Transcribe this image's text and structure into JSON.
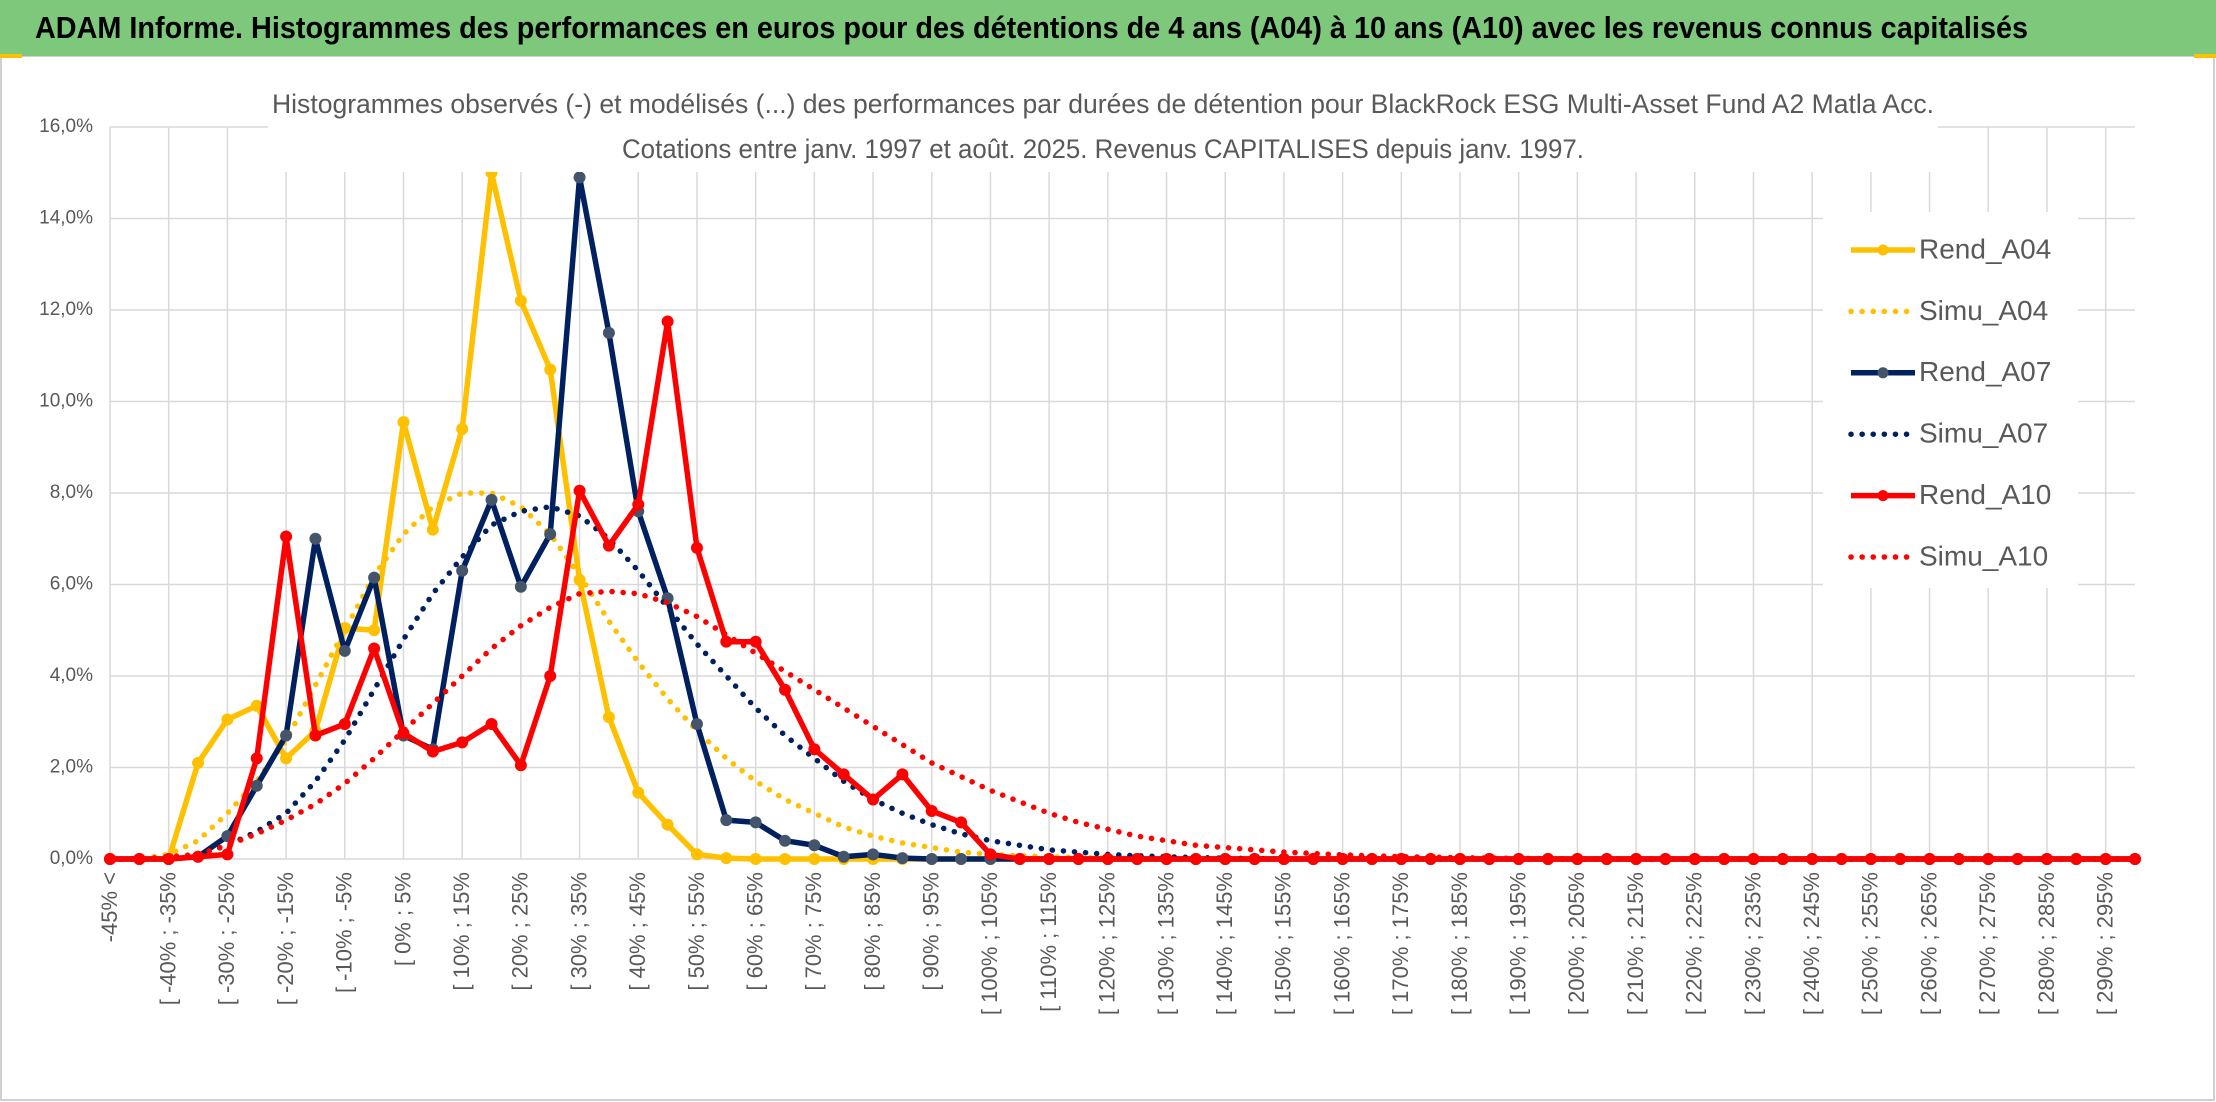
{
  "header": {
    "title": "ADAM Informe. Histogrammes des performances en euros pour des détentions de 4 ans (A04) à 10 ans (A10) avec les revenus connus capitalisés"
  },
  "chart_data": {
    "type": "line",
    "title": "Histogrammes observés (-) et modélisés (...) des performances par durées de détention pour BlackRock ESG Multi-Asset Fund A2 Matla Acc.",
    "subtitle": "Cotations entre janv. 1997 et août. 2025. Revenus CAPITALISES depuis janv. 1997.",
    "categories": [
      "-45% <",
      null,
      "[ -40% ; -35%",
      null,
      "[ -30% ; -25%",
      null,
      "[ -20% ; -15%",
      null,
      "[ -10% ; -5%",
      null,
      "[ 0% ; 5%",
      null,
      "[ 10% ; 15%",
      null,
      "[ 20% ; 25%",
      null,
      "[ 30% ; 35%",
      null,
      "[ 40% ; 45%",
      null,
      "[ 50% ; 55%",
      null,
      "[ 60% ; 65%",
      null,
      "[ 70% ; 75%",
      null,
      "[ 80% ; 85%",
      null,
      "[ 90% ; 95%",
      null,
      "[ 100% ; 105%",
      null,
      "[ 110% ; 115%",
      null,
      "[ 120% ; 125%",
      null,
      "[ 130% ; 135%",
      null,
      "[ 140% ; 145%",
      null,
      "[ 150% ; 155%",
      null,
      "[ 160% ; 165%",
      null,
      "[ 170% ; 175%",
      null,
      "[ 180% ; 185%",
      null,
      "[ 190% ; 195%",
      null,
      "[ 200% ; 205%",
      null,
      "[ 210% ; 215%",
      null,
      "[ 220% ; 225%",
      null,
      "[ 230% ; 235%",
      null,
      "[ 240% ; 245%",
      null,
      "[ 250% ; 255%",
      null,
      "[ 260% ; 265%",
      null,
      "[ 270% ; 275%",
      null,
      "[ 280% ; 285%",
      null,
      "[ 290% ; 295%",
      null
    ],
    "series": [
      {
        "name": "Rend_A04",
        "color": "#ffc000",
        "style": "solid",
        "markers": true,
        "values": [
          0,
          0,
          0,
          2.1,
          3.05,
          3.35,
          2.2,
          2.8,
          5.05,
          5.0,
          9.55,
          7.2,
          9.4,
          15.0,
          12.2,
          10.7,
          6.1,
          3.1,
          1.45,
          0.75,
          0.1,
          0.02,
          0,
          0,
          0,
          0,
          0,
          0,
          0,
          0,
          0,
          0,
          0,
          0,
          0,
          0,
          0,
          0,
          0,
          0,
          0,
          0,
          0,
          0,
          0,
          0,
          0,
          0,
          0,
          0,
          0,
          0,
          0,
          0,
          0,
          0,
          0,
          0,
          0,
          0,
          0,
          0,
          0,
          0,
          0,
          0,
          0,
          0,
          0,
          0
        ]
      },
      {
        "name": "Simu_A04",
        "color": "#ffc000",
        "style": "dotted",
        "markers": false,
        "values": [
          0,
          0,
          0.1,
          0.4,
          1.0,
          1.7,
          2.6,
          3.8,
          5.0,
          6.2,
          7.1,
          7.7,
          8.0,
          8.0,
          7.7,
          7.1,
          6.2,
          5.2,
          4.3,
          3.5,
          2.8,
          2.2,
          1.7,
          1.3,
          1.0,
          0.7,
          0.5,
          0.35,
          0.25,
          0.15,
          0.1,
          0.07,
          0.05,
          0.03,
          0.02,
          0.01,
          0,
          0,
          0,
          0,
          0,
          0,
          0,
          0,
          0,
          0,
          0,
          0,
          0,
          0,
          0,
          0,
          0,
          0,
          0,
          0,
          0,
          0,
          0,
          0,
          0,
          0,
          0,
          0,
          0,
          0,
          0,
          0,
          0,
          0
        ]
      },
      {
        "name": "Rend_A07",
        "color": "#002060",
        "marker_color": "#44546a",
        "style": "solid",
        "markers": true,
        "values": [
          0,
          0,
          0,
          0.05,
          0.5,
          1.6,
          2.7,
          7.0,
          4.55,
          6.15,
          2.7,
          2.4,
          6.3,
          7.85,
          5.95,
          7.1,
          14.9,
          11.5,
          7.6,
          5.7,
          2.95,
          0.85,
          0.8,
          0.4,
          0.3,
          0.05,
          0.1,
          0.02,
          0,
          0,
          0,
          0,
          0,
          0,
          0,
          0,
          0,
          0,
          0,
          0,
          0,
          0,
          0,
          0,
          0,
          0,
          0,
          0,
          0,
          0,
          0,
          0,
          0,
          0,
          0,
          0,
          0,
          0,
          0,
          0,
          0,
          0,
          0,
          0,
          0,
          0,
          0,
          0,
          0,
          0
        ]
      },
      {
        "name": "Simu_A07",
        "color": "#002060",
        "style": "dotted",
        "markers": false,
        "values": [
          0,
          0,
          0,
          0.1,
          0.3,
          0.6,
          1.0,
          1.7,
          2.6,
          3.7,
          4.8,
          5.8,
          6.6,
          7.3,
          7.6,
          7.7,
          7.5,
          7.0,
          6.3,
          5.5,
          4.7,
          4.0,
          3.3,
          2.7,
          2.2,
          1.7,
          1.3,
          1.0,
          0.75,
          0.55,
          0.4,
          0.3,
          0.2,
          0.15,
          0.1,
          0.07,
          0.05,
          0.03,
          0.02,
          0.01,
          0,
          0,
          0,
          0,
          0,
          0,
          0,
          0,
          0,
          0,
          0,
          0,
          0,
          0,
          0,
          0,
          0,
          0,
          0,
          0,
          0,
          0,
          0,
          0,
          0,
          0,
          0,
          0,
          0,
          0
        ]
      },
      {
        "name": "Rend_A10",
        "color": "#ff0000",
        "style": "solid",
        "markers": true,
        "values": [
          0,
          0,
          0,
          0.05,
          0.1,
          2.2,
          7.05,
          2.7,
          2.95,
          4.6,
          2.75,
          2.35,
          2.55,
          2.95,
          2.05,
          4.0,
          8.05,
          6.85,
          7.75,
          11.75,
          6.8,
          4.75,
          4.75,
          3.7,
          2.4,
          1.85,
          1.3,
          1.85,
          1.05,
          0.8,
          0.1,
          0,
          0,
          0,
          0,
          0,
          0,
          0,
          0,
          0,
          0,
          0,
          0,
          0,
          0,
          0,
          0,
          0,
          0,
          0,
          0,
          0,
          0,
          0,
          0,
          0,
          0,
          0,
          0,
          0,
          0,
          0,
          0,
          0,
          0,
          0,
          0,
          0,
          0,
          0
        ]
      },
      {
        "name": "Simu_A10",
        "color": "#ff0000",
        "style": "dotted",
        "markers": false,
        "values": [
          0,
          0,
          0.05,
          0.1,
          0.3,
          0.55,
          0.85,
          1.2,
          1.65,
          2.2,
          2.8,
          3.4,
          4.0,
          4.6,
          5.1,
          5.5,
          5.8,
          5.85,
          5.8,
          5.6,
          5.3,
          4.9,
          4.5,
          4.1,
          3.7,
          3.3,
          2.9,
          2.5,
          2.1,
          1.8,
          1.5,
          1.25,
          1.0,
          0.8,
          0.65,
          0.5,
          0.4,
          0.3,
          0.25,
          0.2,
          0.15,
          0.12,
          0.09,
          0.07,
          0.05,
          0.04,
          0.03,
          0.02,
          0.015,
          0.01,
          0,
          0,
          0,
          0,
          0,
          0,
          0,
          0,
          0,
          0,
          0,
          0,
          0,
          0,
          0,
          0,
          0,
          0,
          0,
          0
        ]
      }
    ],
    "ylim": [
      0,
      16
    ],
    "yticks": [
      {
        "value": 0,
        "label": "0,0%"
      },
      {
        "value": 2,
        "label": "2,0%"
      },
      {
        "value": 4,
        "label": "4,0%"
      },
      {
        "value": 6,
        "label": "6,0%"
      },
      {
        "value": 8,
        "label": "8,0%"
      },
      {
        "value": 10,
        "label": "10,0%"
      },
      {
        "value": 12,
        "label": "12,0%"
      },
      {
        "value": 14,
        "label": "14,0%"
      },
      {
        "value": 16,
        "label": "16,0%"
      }
    ],
    "grid": true,
    "legend": "right"
  }
}
